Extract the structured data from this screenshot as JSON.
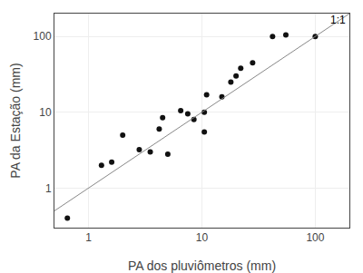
{
  "chart_data": {
    "type": "scatter",
    "xlabel": "PA dos pluviômetros (mm)",
    "ylabel": "PA da Estação (mm)",
    "log": true,
    "grid": true,
    "xlim": [
      0.5,
      200
    ],
    "ylim": [
      0.3,
      200
    ],
    "xticks": [
      1,
      10,
      100
    ],
    "yticks": [
      1,
      10,
      100
    ],
    "series": [
      {
        "type": "scatter",
        "color": "#111111",
        "x": [
          0.65,
          1.3,
          1.6,
          2.0,
          2.8,
          3.5,
          4.2,
          4.5,
          5.0,
          6.5,
          7.5,
          8.5,
          10.5,
          10.5,
          11.0,
          15.0,
          18.0,
          20.0,
          22.0,
          28.0,
          42.0,
          55.0,
          100.0
        ],
        "values": [
          0.4,
          2.0,
          2.2,
          5.0,
          3.2,
          3.0,
          6.0,
          8.5,
          2.8,
          10.5,
          9.5,
          8.0,
          5.5,
          10.0,
          17.0,
          16.0,
          25.0,
          30.0,
          38.0,
          45.0,
          100.0,
          105.0,
          100.0
        ]
      },
      {
        "type": "line",
        "color": "#888888",
        "x": [
          0.3,
          200
        ],
        "values": [
          0.3,
          200
        ]
      }
    ],
    "annotations": [
      {
        "text": "1:1",
        "x": 130,
        "y": 130
      }
    ]
  }
}
